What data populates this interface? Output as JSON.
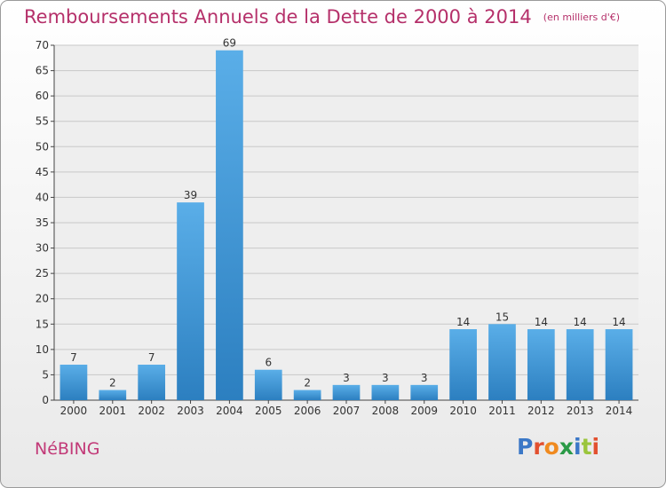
{
  "title": "Remboursements Annuels de la Dette de 2000 à 2014",
  "subtitle": "(en milliers d'€)",
  "commune": "NéBING",
  "logo": {
    "text": "Proxiti"
  },
  "colors": {
    "title": "#b5306a",
    "bar_top": "#5aaee8",
    "bar_bottom": "#2c7fc0",
    "axis": "#444444",
    "grid": "#c8c8c8"
  },
  "chart_data": {
    "type": "bar",
    "categories": [
      "2000",
      "2001",
      "2002",
      "2003",
      "2004",
      "2005",
      "2006",
      "2007",
      "2008",
      "2009",
      "2010",
      "2011",
      "2012",
      "2013",
      "2014"
    ],
    "values": [
      7,
      2,
      7,
      39,
      69,
      6,
      2,
      3,
      3,
      3,
      14,
      15,
      14,
      14,
      14
    ],
    "ylim": [
      0,
      70
    ],
    "yticks": [
      0,
      5,
      10,
      15,
      20,
      25,
      30,
      35,
      40,
      45,
      50,
      55,
      60,
      65,
      70
    ],
    "grid": true,
    "data_labels": true
  }
}
